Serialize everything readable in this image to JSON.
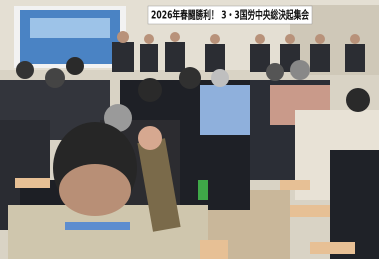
{
  "banner": {
    "text": "2026年春闘勝利！ 3・3国労中央総決起集会"
  }
}
